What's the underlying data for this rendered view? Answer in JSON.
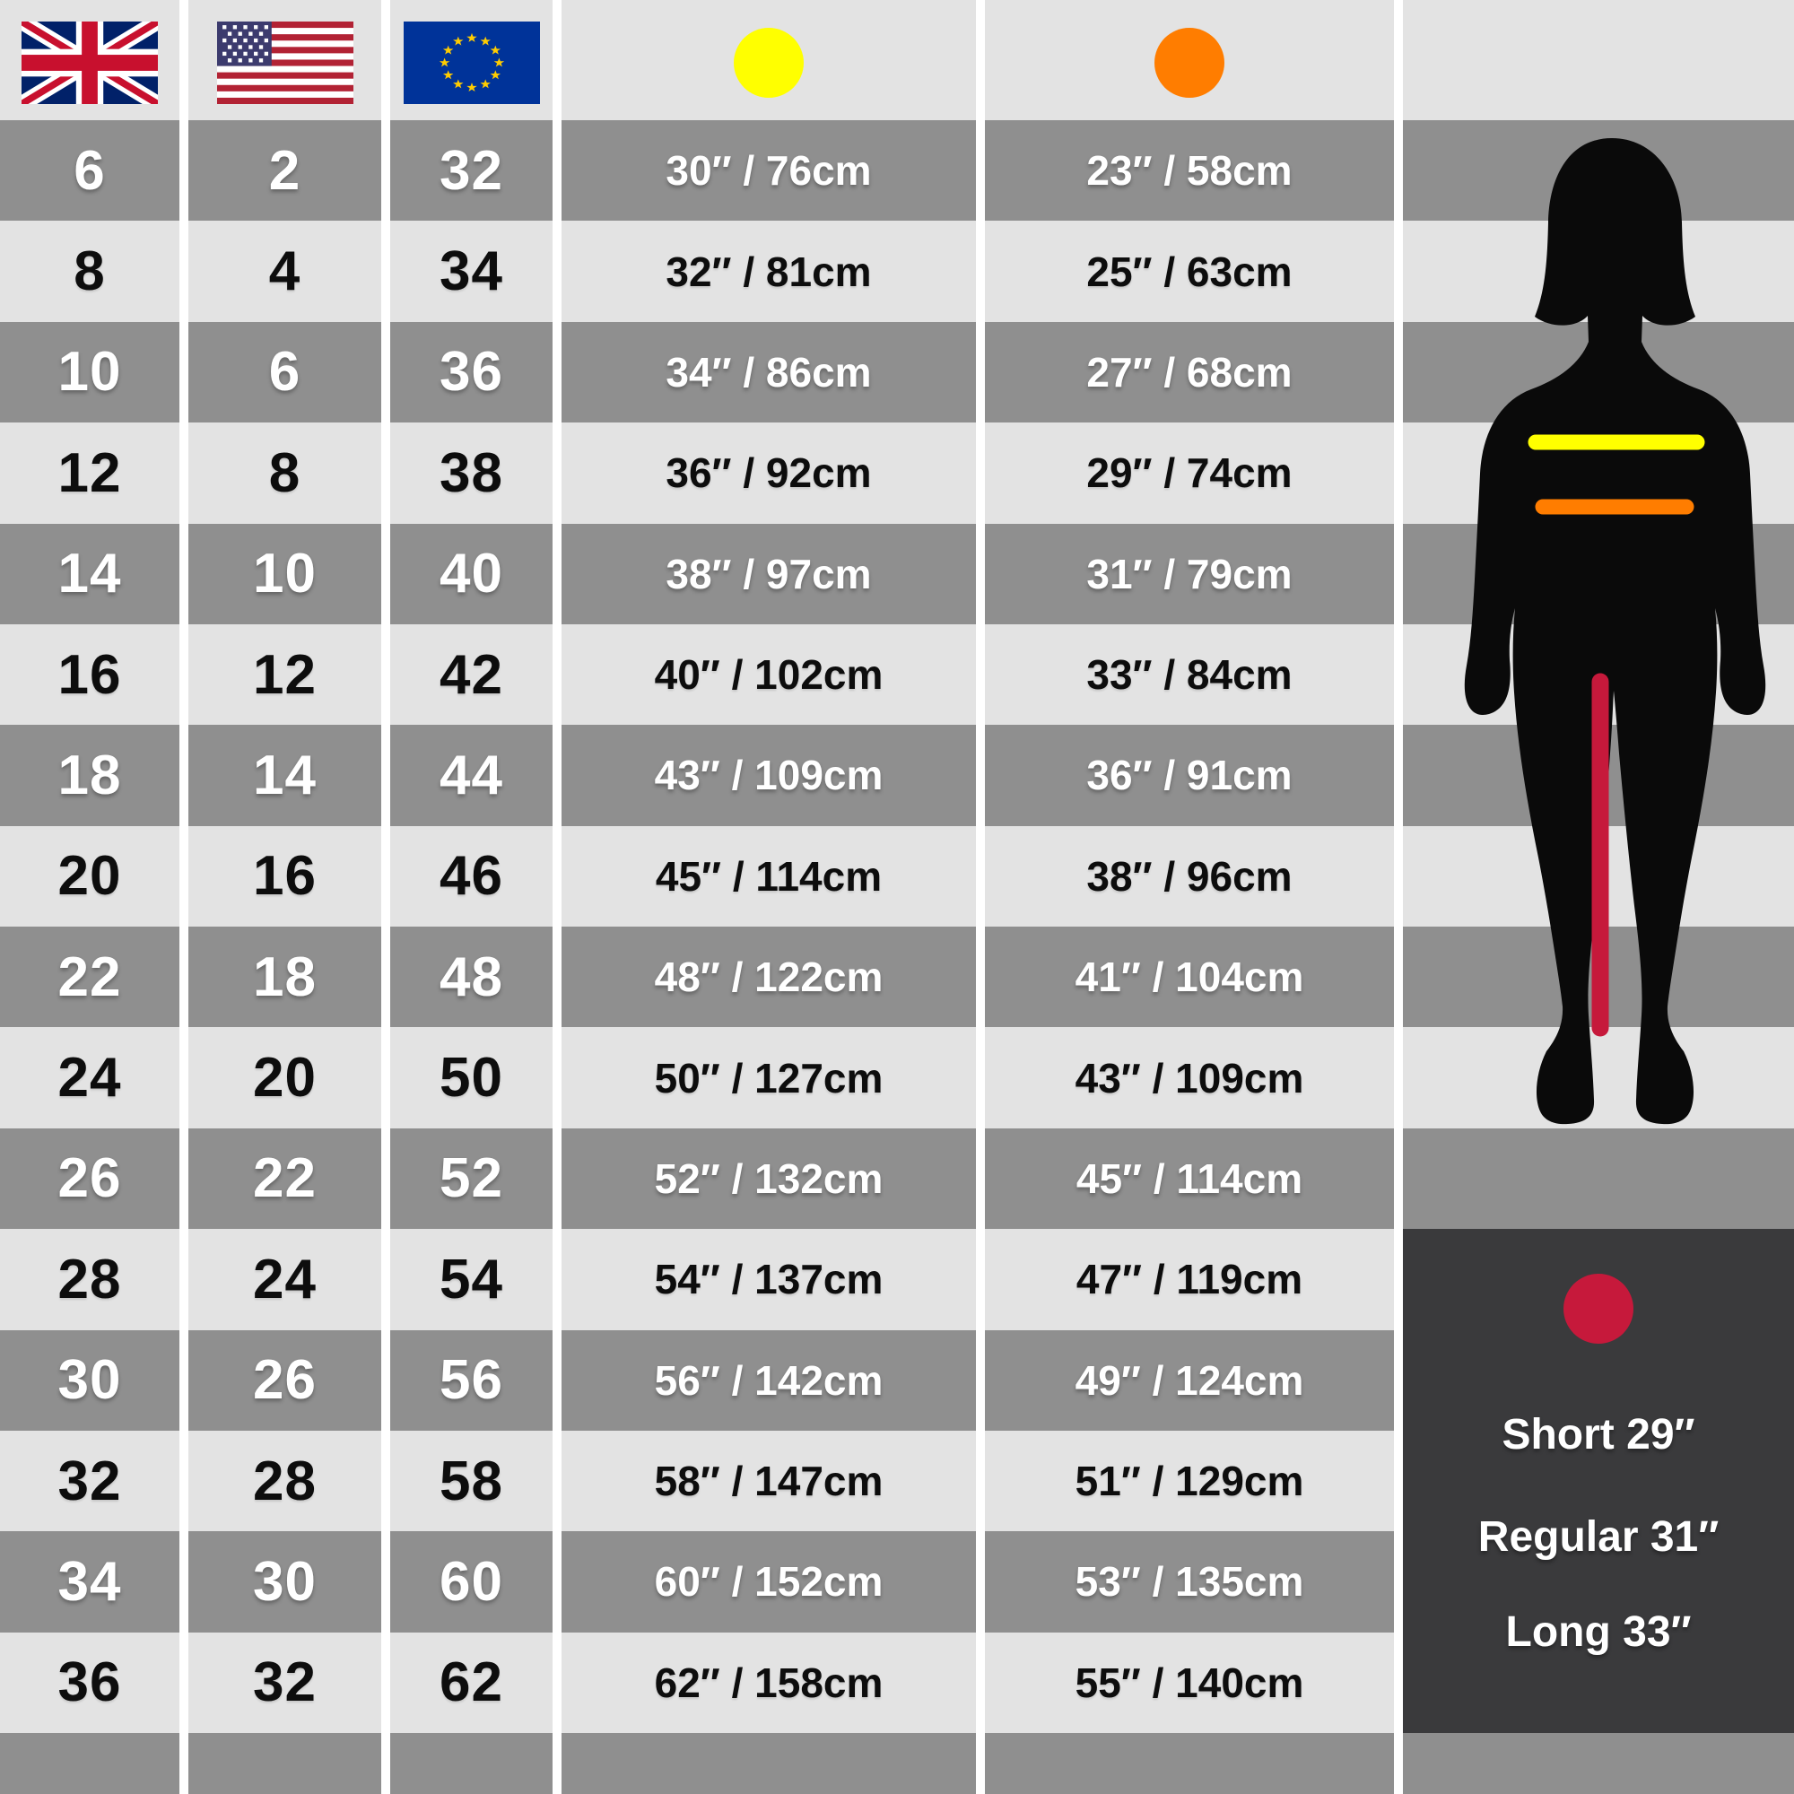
{
  "header": {
    "columns": [
      {
        "key": "uk",
        "icon": "uk-flag-icon"
      },
      {
        "key": "us",
        "icon": "us-flag-icon"
      },
      {
        "key": "eu",
        "icon": "eu-flag-icon"
      },
      {
        "key": "bust",
        "icon": "bust-dot-icon"
      },
      {
        "key": "waist",
        "icon": "waist-dot-icon"
      }
    ]
  },
  "table": {
    "rows": [
      {
        "uk": "6",
        "us": "2",
        "eu": "32",
        "bust": "30″ / 76cm",
        "waist": "23″ / 58cm"
      },
      {
        "uk": "8",
        "us": "4",
        "eu": "34",
        "bust": "32″ / 81cm",
        "waist": "25″ / 63cm"
      },
      {
        "uk": "10",
        "us": "6",
        "eu": "36",
        "bust": "34″ / 86cm",
        "waist": "27″ / 68cm"
      },
      {
        "uk": "12",
        "us": "8",
        "eu": "38",
        "bust": "36″ / 92cm",
        "waist": "29″ / 74cm"
      },
      {
        "uk": "14",
        "us": "10",
        "eu": "40",
        "bust": "38″ / 97cm",
        "waist": "31″ / 79cm"
      },
      {
        "uk": "16",
        "us": "12",
        "eu": "42",
        "bust": "40″ / 102cm",
        "waist": "33″ / 84cm"
      },
      {
        "uk": "18",
        "us": "14",
        "eu": "44",
        "bust": "43″ / 109cm",
        "waist": "36″ / 91cm"
      },
      {
        "uk": "20",
        "us": "16",
        "eu": "46",
        "bust": "45″ / 114cm",
        "waist": "38″ / 96cm"
      },
      {
        "uk": "22",
        "us": "18",
        "eu": "48",
        "bust": "48″ / 122cm",
        "waist": "41″ / 104cm"
      },
      {
        "uk": "24",
        "us": "20",
        "eu": "50",
        "bust": "50″ / 127cm",
        "waist": "43″ / 109cm"
      },
      {
        "uk": "26",
        "us": "22",
        "eu": "52",
        "bust": "52″ / 132cm",
        "waist": "45″ / 114cm"
      },
      {
        "uk": "28",
        "us": "24",
        "eu": "54",
        "bust": "54″ / 137cm",
        "waist": "47″ / 119cm"
      },
      {
        "uk": "30",
        "us": "26",
        "eu": "56",
        "bust": "56″ / 142cm",
        "waist": "49″ / 124cm"
      },
      {
        "uk": "32",
        "us": "28",
        "eu": "58",
        "bust": "58″ / 147cm",
        "waist": "51″ / 129cm"
      },
      {
        "uk": "34",
        "us": "30",
        "eu": "60",
        "bust": "60″ / 152cm",
        "waist": "53″ / 135cm"
      },
      {
        "uk": "36",
        "us": "32",
        "eu": "62",
        "bust": "62″ / 158cm",
        "waist": "55″ / 140cm"
      }
    ]
  },
  "legend": {
    "lines": [
      "Short 29″",
      "Regular 31″",
      "Long 33″"
    ]
  },
  "colors": {
    "bust_marker": "#ffff00",
    "waist_marker": "#ff7d00",
    "inside_leg_marker": "#c6193b",
    "stripe_dark": "#8f8f8f",
    "stripe_light": "#e3e3e3",
    "legend_bg": "#3a3a3c",
    "silhouette": "#0a0a0a",
    "uk_flag_blue": "#012169",
    "flag_red": "#C8102E",
    "us_stripe_red": "#B22234",
    "us_canton_blue": "#3C3B6E",
    "eu_blue": "#003399",
    "eu_star_yellow": "#FFCC00"
  }
}
